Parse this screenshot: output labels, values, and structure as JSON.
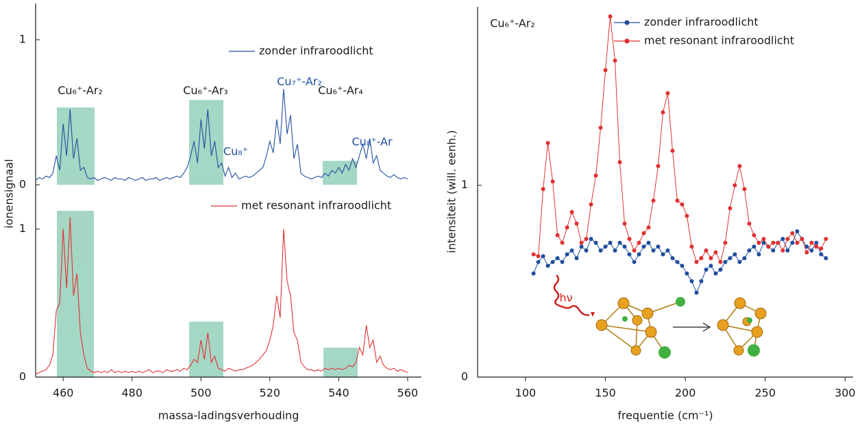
{
  "chart_data": [
    {
      "type": "line",
      "ylabel": "ionensignaal",
      "xlim": [
        452,
        564
      ],
      "ylim": [
        0,
        1.25
      ],
      "yticks": [
        0,
        1
      ],
      "x": [
        452,
        453,
        454,
        455,
        456,
        457,
        458,
        459,
        460,
        461,
        462,
        463,
        464,
        465,
        466,
        467,
        468,
        469,
        470,
        471,
        472,
        473,
        474,
        475,
        476,
        477,
        478,
        479,
        480,
        481,
        482,
        483,
        484,
        485,
        486,
        487,
        488,
        489,
        490,
        491,
        492,
        493,
        494,
        495,
        496,
        497,
        498,
        499,
        500,
        501,
        502,
        503,
        504,
        505,
        506,
        507,
        508,
        509,
        510,
        511,
        512,
        513,
        514,
        515,
        516,
        517,
        518,
        519,
        520,
        521,
        522,
        523,
        524,
        525,
        526,
        527,
        528,
        529,
        530,
        531,
        532,
        533,
        534,
        535,
        536,
        537,
        538,
        539,
        540,
        541,
        542,
        543,
        544,
        545,
        546,
        547,
        548,
        549,
        550,
        551,
        552,
        553,
        554,
        555,
        556,
        557,
        558,
        559,
        560
      ],
      "series": [
        {
          "name": "zonder infraroodlicht",
          "color": "#1f4e9e",
          "values": [
            0.03,
            0.05,
            0.04,
            0.06,
            0.05,
            0.08,
            0.2,
            0.1,
            0.42,
            0.2,
            0.52,
            0.18,
            0.32,
            0.1,
            0.12,
            0.05,
            0.04,
            0.05,
            0.03,
            0.04,
            0.05,
            0.04,
            0.03,
            0.05,
            0.04,
            0.04,
            0.03,
            0.05,
            0.04,
            0.03,
            0.04,
            0.05,
            0.03,
            0.04,
            0.04,
            0.05,
            0.03,
            0.04,
            0.05,
            0.04,
            0.05,
            0.06,
            0.05,
            0.08,
            0.12,
            0.2,
            0.3,
            0.15,
            0.45,
            0.25,
            0.52,
            0.2,
            0.3,
            0.12,
            0.15,
            0.06,
            0.12,
            0.05,
            0.08,
            0.04,
            0.05,
            0.06,
            0.05,
            0.06,
            0.08,
            0.1,
            0.12,
            0.2,
            0.3,
            0.22,
            0.45,
            0.28,
            0.66,
            0.35,
            0.48,
            0.18,
            0.28,
            0.08,
            0.06,
            0.05,
            0.04,
            0.05,
            0.06,
            0.05,
            0.08,
            0.06,
            0.1,
            0.08,
            0.12,
            0.08,
            0.14,
            0.1,
            0.18,
            0.12,
            0.2,
            0.28,
            0.18,
            0.32,
            0.15,
            0.2,
            0.1,
            0.08,
            0.06,
            0.05,
            0.07,
            0.05,
            0.04,
            0.05,
            0.04
          ]
        }
      ],
      "annotations": [
        {
          "text": "Cu₆⁺-Ar₂",
          "color": "#1a1a1a"
        },
        {
          "text": "Cu₆⁺-Ar₃",
          "color": "#1a1a1a"
        },
        {
          "text": "Cu₇⁺-Ar₂",
          "color": "#1f4e9e"
        },
        {
          "text": "Cu₆⁺-Ar₄",
          "color": "#1a1a1a"
        },
        {
          "text": "Cu₈⁺",
          "color": "#1f4e9e"
        },
        {
          "text": "Cu₈⁺-Ar",
          "color": "#1f4e9e"
        }
      ]
    },
    {
      "type": "line",
      "xlabel": "massa-ladingsverhouding",
      "xlim": [
        452,
        564
      ],
      "xticks": [
        460,
        480,
        500,
        520,
        540,
        560
      ],
      "ylim": [
        0,
        1.23
      ],
      "yticks": [
        0,
        1
      ],
      "x": [
        452,
        453,
        454,
        455,
        456,
        457,
        458,
        459,
        460,
        461,
        462,
        463,
        464,
        465,
        466,
        467,
        468,
        469,
        470,
        471,
        472,
        473,
        474,
        475,
        476,
        477,
        478,
        479,
        480,
        481,
        482,
        483,
        484,
        485,
        486,
        487,
        488,
        489,
        490,
        491,
        492,
        493,
        494,
        495,
        496,
        497,
        498,
        499,
        500,
        501,
        502,
        503,
        504,
        505,
        506,
        507,
        508,
        509,
        510,
        511,
        512,
        513,
        514,
        515,
        516,
        517,
        518,
        519,
        520,
        521,
        522,
        523,
        524,
        525,
        526,
        527,
        528,
        529,
        530,
        531,
        532,
        533,
        534,
        535,
        536,
        537,
        538,
        539,
        540,
        541,
        542,
        543,
        544,
        545,
        546,
        547,
        548,
        549,
        550,
        551,
        552,
        553,
        554,
        555,
        556,
        557,
        558,
        559,
        560
      ],
      "series": [
        {
          "name": "met resonant infraroodlicht",
          "color": "#e03030",
          "values": [
            0.02,
            0.03,
            0.04,
            0.05,
            0.08,
            0.15,
            0.45,
            0.5,
            1.0,
            0.6,
            1.08,
            0.55,
            0.7,
            0.3,
            0.15,
            0.06,
            0.04,
            0.03,
            0.04,
            0.03,
            0.04,
            0.03,
            0.05,
            0.03,
            0.04,
            0.03,
            0.04,
            0.03,
            0.04,
            0.03,
            0.04,
            0.03,
            0.04,
            0.05,
            0.03,
            0.04,
            0.04,
            0.03,
            0.05,
            0.04,
            0.04,
            0.05,
            0.04,
            0.06,
            0.05,
            0.08,
            0.12,
            0.1,
            0.25,
            0.12,
            0.3,
            0.1,
            0.14,
            0.06,
            0.05,
            0.04,
            0.06,
            0.05,
            0.04,
            0.05,
            0.05,
            0.06,
            0.07,
            0.08,
            0.1,
            0.12,
            0.15,
            0.18,
            0.25,
            0.35,
            0.55,
            0.4,
            1.0,
            0.65,
            0.55,
            0.3,
            0.25,
            0.1,
            0.07,
            0.05,
            0.05,
            0.04,
            0.05,
            0.04,
            0.06,
            0.05,
            0.06,
            0.05,
            0.06,
            0.05,
            0.06,
            0.08,
            0.07,
            0.1,
            0.2,
            0.15,
            0.35,
            0.2,
            0.25,
            0.1,
            0.14,
            0.08,
            0.06,
            0.05,
            0.06,
            0.04,
            0.05,
            0.04,
            0.03
          ]
        }
      ]
    },
    {
      "type": "line",
      "markers": true,
      "xlabel": "frequentie (cm⁻¹)",
      "ylabel": "intensiteit (will. eenh.)",
      "xlim": [
        70,
        305
      ],
      "xticks": [
        100,
        150,
        200,
        250,
        300
      ],
      "ylim": [
        0,
        1.93
      ],
      "yticks": [
        0,
        1
      ],
      "x": [
        105,
        108,
        111,
        114,
        117,
        120,
        123,
        126,
        129,
        132,
        135,
        138,
        141,
        144,
        147,
        150,
        153,
        156,
        159,
        162,
        165,
        168,
        171,
        174,
        177,
        180,
        183,
        186,
        189,
        192,
        195,
        198,
        201,
        204,
        207,
        210,
        213,
        216,
        219,
        222,
        225,
        228,
        231,
        234,
        237,
        240,
        243,
        246,
        249,
        252,
        255,
        258,
        261,
        264,
        267,
        270,
        273,
        276,
        279,
        282,
        285,
        288
      ],
      "series": [
        {
          "name": "zonder infraroodlicht",
          "color": "#1f4e9e",
          "values": [
            0.54,
            0.6,
            0.63,
            0.58,
            0.6,
            0.62,
            0.6,
            0.64,
            0.66,
            0.62,
            0.68,
            0.66,
            0.72,
            0.7,
            0.66,
            0.68,
            0.7,
            0.66,
            0.7,
            0.68,
            0.64,
            0.6,
            0.64,
            0.68,
            0.7,
            0.66,
            0.68,
            0.64,
            0.66,
            0.62,
            0.6,
            0.58,
            0.54,
            0.5,
            0.44,
            0.5,
            0.56,
            0.58,
            0.54,
            0.56,
            0.6,
            0.62,
            0.64,
            0.6,
            0.62,
            0.66,
            0.68,
            0.64,
            0.7,
            0.68,
            0.66,
            0.7,
            0.72,
            0.66,
            0.7,
            0.76,
            0.72,
            0.68,
            0.66,
            0.7,
            0.64,
            0.62
          ]
        },
        {
          "name": "met resonant infraroodlicht",
          "color": "#e03030",
          "values": [
            0.64,
            0.63,
            0.98,
            1.22,
            1.02,
            0.74,
            0.7,
            0.78,
            0.86,
            0.8,
            0.7,
            0.72,
            0.9,
            1.05,
            1.3,
            1.6,
            1.88,
            1.65,
            1.12,
            0.8,
            0.72,
            0.66,
            0.7,
            0.75,
            0.78,
            0.92,
            1.1,
            1.38,
            1.48,
            1.18,
            0.92,
            0.9,
            0.84,
            0.68,
            0.6,
            0.62,
            0.66,
            0.62,
            0.65,
            0.6,
            0.7,
            0.88,
            1.0,
            1.1,
            0.98,
            0.8,
            0.74,
            0.7,
            0.72,
            0.68,
            0.7,
            0.7,
            0.66,
            0.72,
            0.75,
            0.7,
            0.72,
            0.65,
            0.7,
            0.68,
            0.67,
            0.72
          ]
        }
      ],
      "annotations": [
        {
          "text": "Cu₆⁺-Ar₂",
          "color": "#1a1a1a"
        },
        {
          "text": "hν",
          "color": "#d02020"
        }
      ]
    }
  ]
}
